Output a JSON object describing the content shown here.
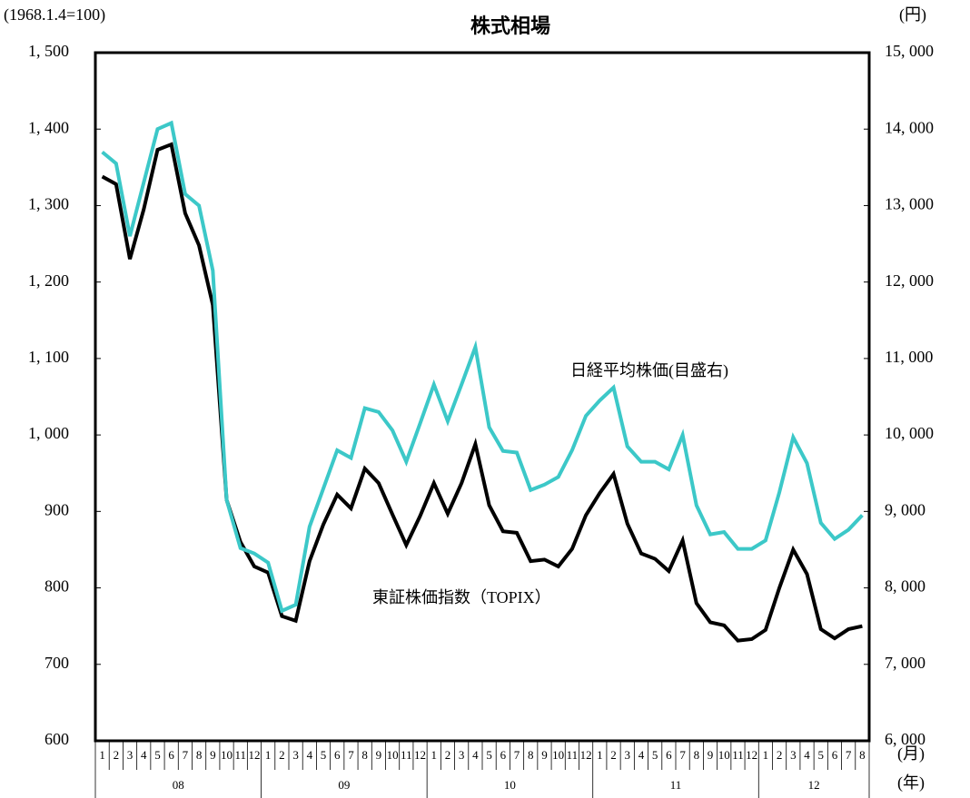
{
  "chart_data": {
    "type": "line",
    "title": "株式相場",
    "y_label": "(1968.1.4=100)",
    "y2_label": "(円)",
    "x_label": "(月)",
    "x_group_label": "(年)",
    "categories": [
      "1",
      "2",
      "3",
      "4",
      "5",
      "6",
      "7",
      "8",
      "9",
      "10",
      "11",
      "12",
      "1",
      "2",
      "3",
      "4",
      "5",
      "6",
      "7",
      "8",
      "9",
      "10",
      "11",
      "12",
      "1",
      "2",
      "3",
      "4",
      "5",
      "6",
      "7",
      "8",
      "9",
      "10",
      "11",
      "12",
      "1",
      "2",
      "3",
      "4",
      "5",
      "6",
      "7",
      "8",
      "9",
      "10",
      "11",
      "12",
      "1",
      "2",
      "3",
      "4",
      "5",
      "6",
      "7",
      "8"
    ],
    "groups": [
      "08",
      "09",
      "10",
      "11",
      "12"
    ],
    "annotations": [
      "日経平均株価(目盛右)",
      "東証株価指数（TOPIX）"
    ],
    "ylim": [
      600,
      1500
    ],
    "yticks": [
      600,
      700,
      800,
      900,
      {
        "value": 1000,
        "label": "1, 000"
      },
      {
        "value": 1100,
        "label": "1, 100"
      },
      {
        "value": 1200,
        "label": "1, 200"
      },
      {
        "value": 1300,
        "label": "1, 300"
      },
      {
        "value": 1400,
        "label": "1, 400"
      },
      {
        "value": 1500,
        "label": "1, 500"
      }
    ],
    "y2lim": [
      6000,
      15000
    ],
    "y2ticks": [
      {
        "value": 6000,
        "label": "6, 000"
      },
      {
        "value": 7000,
        "label": "7, 000"
      },
      {
        "value": 8000,
        "label": "8, 000"
      },
      {
        "value": 9000,
        "label": "9, 000"
      },
      {
        "value": 10000,
        "label": "10, 000"
      },
      {
        "value": 11000,
        "label": "11, 000"
      },
      {
        "value": 12000,
        "label": "12, 000"
      },
      {
        "value": 13000,
        "label": "13, 000"
      },
      {
        "value": 14000,
        "label": "14, 000"
      },
      {
        "value": 15000,
        "label": "15, 000"
      }
    ],
    "series": [
      {
        "name": "東証株価指数（TOPIX）",
        "color": "#000000",
        "values": [
          1338,
          1328,
          1230,
          1295,
          1373,
          1380,
          1290,
          1248,
          1170,
          915,
          860,
          828,
          820,
          763,
          757,
          835,
          883,
          922,
          904,
          956,
          937,
          896,
          856,
          894,
          937,
          897,
          937,
          988,
          908,
          874,
          872,
          835,
          837,
          828,
          851,
          895,
          924,
          949,
          884,
          845,
          838,
          822,
          862,
          780,
          755,
          751,
          731,
          733,
          745,
          800,
          850,
          818,
          746,
          734,
          746,
          750
        ]
      },
      {
        "name": "日経平均株価(目盛右)",
        "color": "#3cc8c8",
        "axis": "y2",
        "values": [
          13700,
          13550,
          12600,
          13300,
          14000,
          14080,
          13150,
          13000,
          12150,
          9150,
          8520,
          8450,
          8330,
          7700,
          7780,
          8800,
          9300,
          9800,
          9700,
          10350,
          10300,
          10060,
          9650,
          10150,
          10660,
          10180,
          10660,
          11150,
          10100,
          9790,
          9770,
          9280,
          9350,
          9450,
          9800,
          10250,
          10450,
          10620,
          9850,
          9650,
          9650,
          9550,
          10000,
          9080,
          8700,
          8730,
          8510,
          8510,
          8620,
          9250,
          9970,
          9630,
          8850,
          8640,
          8760,
          8950
        ]
      }
    ]
  }
}
